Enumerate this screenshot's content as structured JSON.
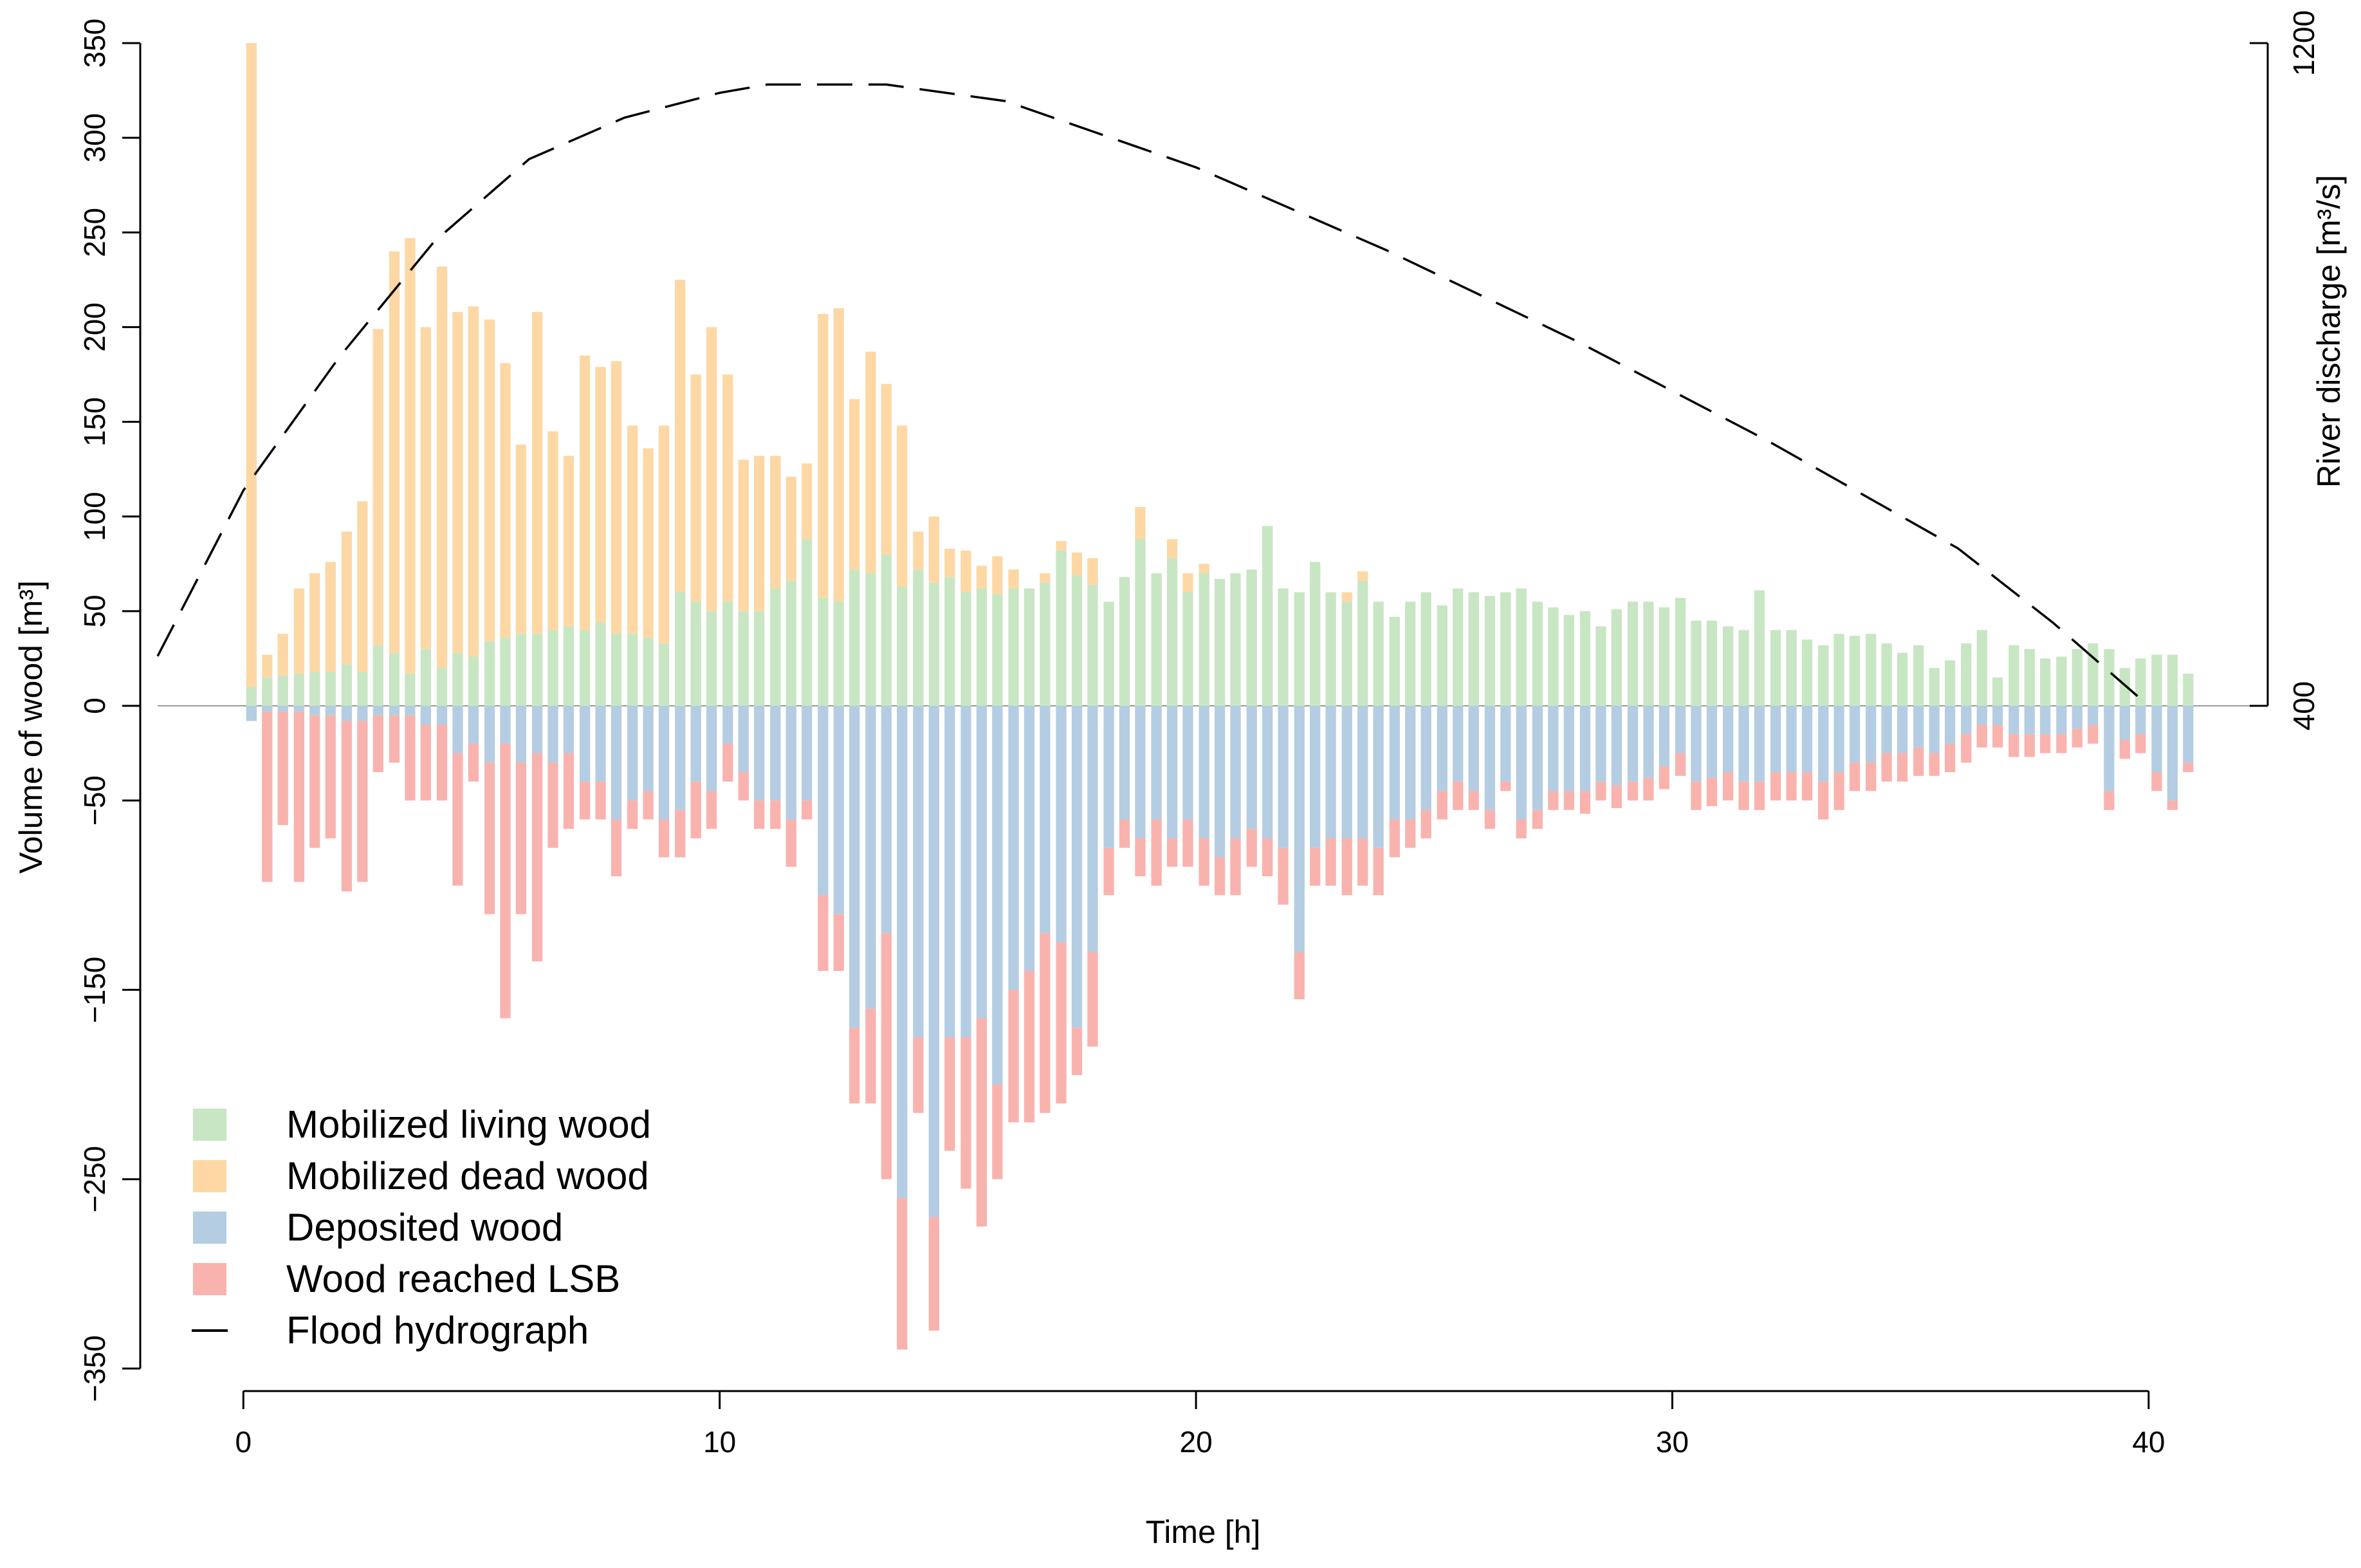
{
  "chart_data": {
    "type": "bar",
    "xlabel": "Time [h]",
    "ylabel": "Volume of wood [m³]",
    "y2label": "River discharge [m³/s]",
    "xlim": [
      -1.8,
      42.5
    ],
    "ylim": [
      -350,
      350
    ],
    "y2lim": [
      400,
      1200
    ],
    "x_ticks": [
      0,
      10,
      20,
      30,
      40
    ],
    "y_ticks": [
      -350,
      -250,
      -150,
      -50,
      0,
      50,
      100,
      150,
      200,
      250,
      300,
      350
    ],
    "y2_ticks": [
      400,
      1200
    ],
    "bar_width": 0.25,
    "legend_position": "bottom-left",
    "colors": {
      "living": "#c8e6c3",
      "dead": "#fdd8a5",
      "deposited": "#b4cde3",
      "lsb": "#f9b3ae",
      "hydrograph": "#000000",
      "zero_line": "#999999"
    },
    "legend": [
      {
        "key": "living",
        "label": "Mobilized living wood",
        "kind": "box"
      },
      {
        "key": "dead",
        "label": "Mobilized dead wood",
        "kind": "box"
      },
      {
        "key": "deposited",
        "label": "Deposited wood",
        "kind": "box"
      },
      {
        "key": "lsb",
        "label": "Wood reached LSB",
        "kind": "box"
      },
      {
        "key": "hydrograph",
        "label": "Flood hydrograph",
        "kind": "line"
      }
    ],
    "time": [
      0.17,
      0.5,
      0.83,
      1.17,
      1.5,
      1.83,
      2.17,
      2.5,
      2.83,
      3.17,
      3.5,
      3.83,
      4.17,
      4.5,
      4.83,
      5.17,
      5.5,
      5.83,
      6.17,
      6.5,
      6.83,
      7.17,
      7.5,
      7.83,
      8.17,
      8.5,
      8.83,
      9.17,
      9.5,
      9.83,
      10.17,
      10.5,
      10.83,
      11.17,
      11.5,
      11.83,
      12.17,
      12.5,
      12.83,
      13.17,
      13.5,
      13.83,
      14.17,
      14.5,
      14.83,
      15.17,
      15.5,
      15.83,
      16.17,
      16.5,
      16.83,
      17.17,
      17.5,
      17.83,
      18.17,
      18.5,
      18.83,
      19.17,
      19.5,
      19.83,
      20.17,
      20.5,
      20.83,
      21.17,
      21.5,
      21.83,
      22.17,
      22.5,
      22.83,
      23.17,
      23.5,
      23.83,
      24.17,
      24.5,
      24.83,
      25.17,
      25.5,
      25.83,
      26.17,
      26.5,
      26.83,
      27.17,
      27.5,
      27.83,
      28.17,
      28.5,
      28.83,
      29.17,
      29.5,
      29.83,
      30.17,
      30.5,
      30.83,
      31.17,
      31.5,
      31.83,
      32.17,
      32.5,
      32.83,
      33.17,
      33.5,
      33.83,
      34.17,
      34.5,
      34.83,
      35.17,
      35.5,
      35.83,
      36.17,
      36.5,
      36.83,
      37.17,
      37.5,
      37.83,
      38.17,
      38.5,
      38.83,
      39.17,
      39.5,
      39.83,
      40.17,
      40.5,
      40.83
    ],
    "living": [
      10,
      15,
      16,
      17,
      18,
      18,
      22,
      18,
      32,
      28,
      17,
      30,
      20,
      28,
      26,
      34,
      36,
      38,
      38,
      40,
      42,
      40,
      44,
      38,
      38,
      36,
      33,
      60,
      55,
      50,
      55,
      50,
      50,
      62,
      66,
      88,
      57,
      55,
      72,
      70,
      80,
      63,
      72,
      65,
      68,
      60,
      62,
      59,
      62,
      62,
      65,
      82,
      69,
      64,
      55,
      68,
      88,
      70,
      78,
      60,
      70,
      67,
      70,
      72,
      95,
      62,
      60,
      76,
      60,
      55,
      66,
      55,
      47,
      55,
      60,
      53,
      62,
      60,
      58,
      60,
      62,
      55,
      52,
      48,
      50,
      42,
      51,
      55,
      55,
      52,
      57,
      45,
      45,
      42,
      40,
      61,
      40,
      40,
      35,
      32,
      38,
      37,
      38,
      33,
      28,
      32,
      20,
      24,
      33,
      40,
      15,
      32,
      30,
      25,
      26,
      30,
      33,
      30,
      20,
      25,
      27,
      27,
      17
    ],
    "dead": [
      340,
      12,
      22,
      45,
      52,
      58,
      70,
      90,
      167,
      212,
      230,
      170,
      212,
      180,
      185,
      170,
      145,
      100,
      170,
      105,
      90,
      145,
      135,
      144,
      110,
      100,
      115,
      165,
      120,
      150,
      120,
      80,
      82,
      70,
      55,
      40,
      150,
      155,
      90,
      117,
      90,
      85,
      20,
      35,
      15,
      22,
      12,
      20,
      10,
      0,
      5,
      5,
      12,
      14,
      0,
      0,
      17,
      0,
      10,
      10,
      5,
      0,
      0,
      0,
      0,
      0,
      0,
      0,
      0,
      5,
      5,
      0,
      0,
      0,
      0,
      0,
      0,
      0,
      0,
      0,
      0,
      0,
      0,
      0,
      0,
      0,
      0,
      0,
      0,
      0,
      0,
      0,
      0,
      0,
      0,
      0,
      0,
      0,
      0,
      0,
      0,
      0,
      0,
      0,
      0,
      0,
      0,
      0,
      0,
      0,
      0,
      0,
      0,
      0,
      0,
      0,
      0,
      0,
      0,
      0,
      0,
      0,
      0
    ],
    "deposited": [
      -8,
      -3,
      -3,
      -3,
      -5,
      -5,
      -8,
      -8,
      -5,
      -5,
      -5,
      -10,
      -10,
      -25,
      -20,
      -30,
      -20,
      -30,
      -25,
      -30,
      -25,
      -40,
      -40,
      -60,
      -50,
      -45,
      -60,
      -55,
      -40,
      -45,
      -20,
      -35,
      -50,
      -50,
      -60,
      -50,
      -100,
      -110,
      -170,
      -160,
      -120,
      -260,
      -175,
      -270,
      -175,
      -175,
      -165,
      -200,
      -150,
      -140,
      -120,
      -125,
      -170,
      -130,
      -75,
      -60,
      -70,
      -60,
      -70,
      -60,
      -70,
      -80,
      -70,
      -65,
      -70,
      -75,
      -130,
      -75,
      -70,
      -70,
      -70,
      -75,
      -60,
      -60,
      -55,
      -45,
      -40,
      -45,
      -55,
      -40,
      -60,
      -55,
      -45,
      -45,
      -45,
      -40,
      -42,
      -40,
      -38,
      -32,
      -25,
      -40,
      -38,
      -35,
      -40,
      -40,
      -35,
      -35,
      -35,
      -40,
      -35,
      -30,
      -30,
      -25,
      -25,
      -22,
      -25,
      -20,
      -15,
      -10,
      -10,
      -15,
      -15,
      -15,
      -15,
      -12,
      -10,
      -45,
      -18,
      -15,
      -35,
      -50,
      -30
    ],
    "lsb": [
      0,
      -90,
      -60,
      -90,
      -70,
      -65,
      -90,
      -85,
      -30,
      -25,
      -45,
      -40,
      -40,
      -70,
      -20,
      -80,
      -145,
      -80,
      -110,
      -45,
      -40,
      -20,
      -20,
      -30,
      -15,
      -15,
      -20,
      -25,
      -30,
      -20,
      -20,
      -15,
      -15,
      -15,
      -25,
      -10,
      -40,
      -30,
      -40,
      -50,
      -130,
      -80,
      -40,
      -60,
      -60,
      -80,
      -110,
      -50,
      -70,
      -80,
      -95,
      -85,
      -25,
      -50,
      -25,
      -15,
      -20,
      -35,
      -15,
      -25,
      -25,
      -20,
      -30,
      -20,
      -20,
      -30,
      -25,
      -20,
      -25,
      -30,
      -25,
      -25,
      -20,
      -15,
      -15,
      -15,
      -15,
      -10,
      -10,
      -5,
      -10,
      -10,
      -10,
      -10,
      -12,
      -10,
      -12,
      -10,
      -12,
      -12,
      -12,
      -15,
      -15,
      -15,
      -15,
      -15,
      -15,
      -15,
      -15,
      -20,
      -20,
      -15,
      -15,
      -15,
      -15,
      -15,
      -12,
      -15,
      -15,
      -12,
      -12,
      -12,
      -12,
      -10,
      -10,
      -10,
      -10,
      -10,
      -10,
      -10,
      -10,
      -5,
      -5
    ],
    "hydrograph": {
      "t": [
        -1.8,
        0,
        2,
        4,
        6,
        8,
        10,
        11,
        12,
        13.5,
        16,
        20,
        24,
        28,
        32,
        36,
        38,
        40
      ],
      "q": [
        460,
        660,
        820,
        960,
        1060,
        1110,
        1140,
        1150,
        1150,
        1150,
        1130,
        1050,
        950,
        840,
        720,
        590,
        500,
        400
      ]
    }
  }
}
